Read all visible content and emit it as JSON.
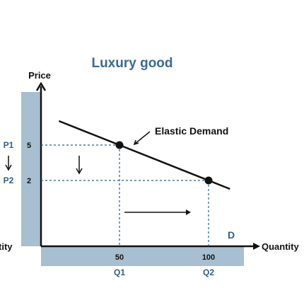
{
  "chart_data": {
    "type": "line",
    "title": "Luxury good",
    "xlabel": "Quantity",
    "ylabel": "Price",
    "left_cut_label": "tity",
    "x_ticks": [
      50,
      100
    ],
    "y_ticks": [
      5,
      2
    ],
    "quantity_labels": [
      "Q1",
      "Q2"
    ],
    "price_labels": [
      "P1",
      "P2"
    ],
    "series": [
      {
        "name": "Elastic Demand",
        "points": [
          [
            50,
            5
          ],
          [
            100,
            2
          ]
        ]
      }
    ],
    "demand_label": "D",
    "annotations": [
      "Elastic Demand"
    ],
    "colors": {
      "axis_band": "#a8bfd1",
      "guide": "#2f5f8a",
      "line": "#111111",
      "title": "#3a6a94"
    }
  }
}
